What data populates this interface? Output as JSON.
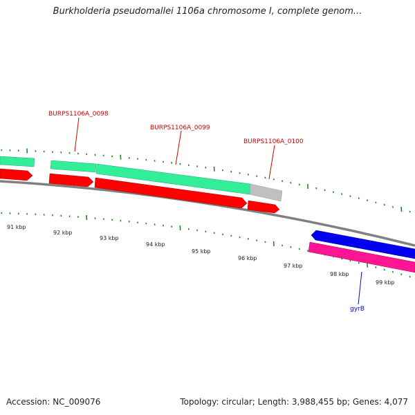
{
  "title": "Burkholderia pseudomallei 1106a chromosome I, complete genom...",
  "footer": {
    "accession_label": "Accession: NC_009076",
    "summary": "Topology: circular; Length: 3,988,455 bp; Genes: 4,077"
  },
  "axis": {
    "ticks": [
      "91 kbp",
      "92 kbp",
      "93 kbp",
      "94 kbp",
      "95 kbp",
      "96 kbp",
      "97 kbp",
      "98 kbp",
      "99 kbp"
    ]
  },
  "genes": [
    {
      "name": "BURPS1106A_0098",
      "color": "#cc0000"
    },
    {
      "name": "BURPS1106A_0099",
      "color": "#cc0000"
    },
    {
      "name": "BURPS1106A_0100",
      "color": "#cc0000"
    },
    {
      "name": "gyrB",
      "color": "#0000cc"
    }
  ],
  "colors": {
    "backbone": "#808080",
    "cds_forward": "#ff0000",
    "gene_forward": "#33ee99",
    "gene_pseudo": "#c0c0c0",
    "cds_reverse": "#ff1493",
    "gene_reverse": "#0000ee",
    "tick_major": "#228822",
    "tick_minor": "#228822"
  }
}
